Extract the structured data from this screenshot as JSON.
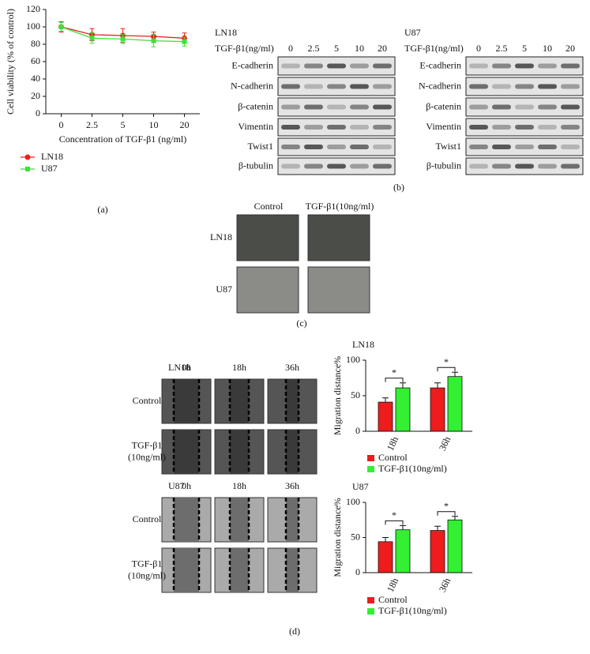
{
  "chart_data": [
    {
      "type": "line",
      "ylabel": "Cell viability (% of control)",
      "xlabel": "Concentration of TGF-β1 (ng/ml)",
      "categories": [
        "0",
        "2.5",
        "5",
        "10",
        "20"
      ],
      "series": [
        {
          "name": "LN18",
          "color": "#e8231f",
          "values": [
            100,
            91,
            90,
            89,
            87
          ],
          "errors": [
            6,
            7,
            8,
            5,
            6
          ]
        },
        {
          "name": "U87",
          "color": "#3fe03a",
          "values": [
            100,
            87,
            86,
            84,
            83
          ],
          "errors": [
            5,
            6,
            5,
            7,
            5
          ]
        }
      ],
      "ylim": [
        0,
        120
      ],
      "yticks": [
        0,
        20,
        40,
        60,
        80,
        100,
        120
      ]
    },
    {
      "type": "bar",
      "title": "LN18",
      "ylabel": "Migration distance%",
      "categories": [
        "18h",
        "36h"
      ],
      "series": [
        {
          "name": "Control",
          "color": "#ee1c1c",
          "values": [
            41,
            61
          ],
          "errors": [
            6,
            7
          ]
        },
        {
          "name": "TGF-β1(10ng/ml)",
          "color": "#33f033",
          "values": [
            61,
            77
          ],
          "errors": [
            7,
            6
          ]
        }
      ],
      "annotations": [
        "*",
        "*"
      ],
      "ylim": [
        0,
        100
      ],
      "yticks": [
        0,
        50,
        100
      ]
    },
    {
      "type": "bar",
      "title": "U87",
      "ylabel": "Migration distance%",
      "categories": [
        "18h",
        "36h"
      ],
      "series": [
        {
          "name": "Control",
          "color": "#ee1c1c",
          "values": [
            44,
            60
          ],
          "errors": [
            6,
            6
          ]
        },
        {
          "name": "TGF-β1(10ng/ml)",
          "color": "#33f033",
          "values": [
            61,
            75
          ],
          "errors": [
            6,
            5
          ]
        }
      ],
      "annotations": [
        "*",
        "*"
      ],
      "ylim": [
        0,
        100
      ],
      "yticks": [
        0,
        50,
        100
      ]
    }
  ],
  "panel_labels": [
    "(a)",
    "(b)",
    "(c)",
    "(d)"
  ],
  "western_blot": [
    {
      "cell_line": "LN18",
      "dose_label": "TGF-β1(ng/ml)",
      "doses": [
        "0",
        "2.5",
        "5",
        "10",
        "20"
      ],
      "proteins": [
        "E-cadherin",
        "N-cadherin",
        "β-catenin",
        "Vimentin",
        "Twist1",
        "β-tubulin"
      ]
    },
    {
      "cell_line": "U87",
      "dose_label": "TGF-β1(ng/ml)",
      "doses": [
        "0",
        "2.5",
        "5",
        "10",
        "20"
      ],
      "proteins": [
        "E-cadherin",
        "N-cadherin",
        "β-catenin",
        "Vimentin",
        "Twist1",
        "β-tubulin"
      ]
    }
  ],
  "morphology": {
    "columns": [
      "Control",
      "TGF-β1(10ng/ml)"
    ],
    "rows": [
      "LN18",
      "U87"
    ]
  },
  "wound_healing": [
    {
      "cell_line": "LN18",
      "times": [
        "0h",
        "18h",
        "36h"
      ],
      "rows": [
        [
          "Control"
        ],
        [
          "TGF-β1",
          "(10ng/ml)"
        ]
      ]
    },
    {
      "cell_line": "U87",
      "times": [
        "0h",
        "18h",
        "36h"
      ],
      "rows": [
        [
          "Control"
        ],
        [
          "TGF-β1",
          "(10ng/ml)"
        ]
      ]
    }
  ]
}
